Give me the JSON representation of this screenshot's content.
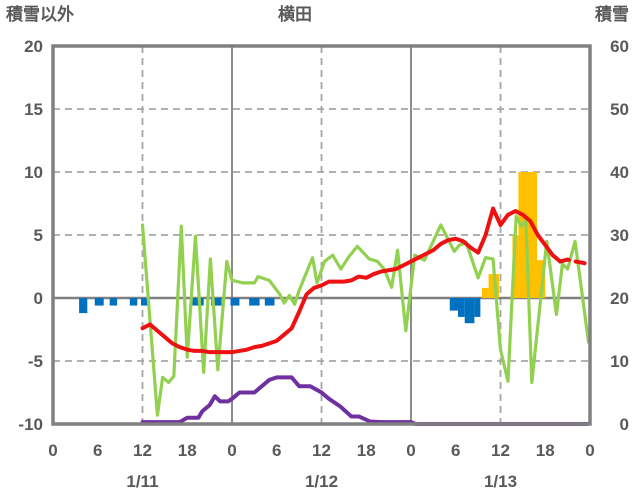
{
  "header": {
    "left_axis_title": "積雪以外",
    "chart_title": "横田",
    "right_axis_title": "積雪"
  },
  "chart_data": {
    "type": "line+bar combo (weather observation chart)",
    "title": "横田",
    "left_axis": {
      "label": "積雪以外",
      "range": [
        -10,
        20
      ],
      "ticks": [
        20,
        15,
        10,
        5,
        0,
        -5,
        -10
      ],
      "gridlines_dashed_at": [
        15,
        10,
        5,
        -5
      ],
      "zero_line_solid": true
    },
    "right_axis": {
      "label": "積雪",
      "range": [
        0,
        60
      ],
      "ticks": [
        60,
        50,
        40,
        30,
        20,
        10,
        0
      ],
      "mapping": "right = (left + 10) * 2"
    },
    "x_axis": {
      "unit": "hour",
      "range_hours": [
        0,
        72
      ],
      "tick_hours": [
        0,
        6,
        12,
        18,
        24,
        30,
        36,
        42,
        48,
        54,
        60,
        66,
        72
      ],
      "tick_labels": [
        "0",
        "6",
        "12",
        "18",
        "0",
        "6",
        "12",
        "18",
        "0",
        "6",
        "12",
        "18",
        "0"
      ],
      "day_labels": [
        {
          "hour": 12,
          "label": "1/11"
        },
        {
          "hour": 36,
          "label": "1/12"
        },
        {
          "hour": 60,
          "label": "1/13"
        }
      ],
      "dashed_vertical_at_hours": [
        12,
        36,
        60
      ],
      "solid_vertical_at_hours": [
        24,
        48
      ],
      "grid": true
    },
    "series": [
      {
        "name": "red-line",
        "axis": "left",
        "style": "solid, dashed forecast tail",
        "color": "#ee1111",
        "points": [
          [
            12,
            -2.4
          ],
          [
            13,
            -2.1
          ],
          [
            14,
            -2.6
          ],
          [
            15,
            -3.1
          ],
          [
            16,
            -3.6
          ],
          [
            17,
            -3.9
          ],
          [
            18,
            -4.1
          ],
          [
            19,
            -4.2
          ],
          [
            20,
            -4.2
          ],
          [
            21,
            -4.3
          ],
          [
            22,
            -4.3
          ],
          [
            23,
            -4.3
          ],
          [
            24,
            -4.3
          ],
          [
            25,
            -4.2
          ],
          [
            26,
            -4.1
          ],
          [
            27,
            -3.9
          ],
          [
            28,
            -3.8
          ],
          [
            29,
            -3.6
          ],
          [
            30,
            -3.4
          ],
          [
            31,
            -2.9
          ],
          [
            32,
            -2.4
          ],
          [
            33,
            -1.1
          ],
          [
            34,
            0.3
          ],
          [
            35,
            0.8
          ],
          [
            36,
            1.0
          ],
          [
            37,
            1.3
          ],
          [
            38,
            1.3
          ],
          [
            39,
            1.3
          ],
          [
            40,
            1.4
          ],
          [
            41,
            1.7
          ],
          [
            42,
            1.6
          ],
          [
            43,
            1.9
          ],
          [
            44,
            2.1
          ],
          [
            45,
            2.2
          ],
          [
            46,
            2.3
          ],
          [
            47,
            2.6
          ],
          [
            48,
            2.9
          ],
          [
            49,
            3.2
          ],
          [
            50,
            3.5
          ],
          [
            51,
            3.8
          ],
          [
            52,
            4.3
          ],
          [
            53,
            4.6
          ],
          [
            54,
            4.7
          ],
          [
            55,
            4.5
          ],
          [
            56,
            4.0
          ],
          [
            57,
            3.6
          ],
          [
            58,
            5.0
          ],
          [
            59,
            7.1
          ],
          [
            60,
            5.8
          ],
          [
            61,
            6.6
          ],
          [
            62,
            6.9
          ],
          [
            63,
            6.6
          ],
          [
            64,
            6.1
          ],
          [
            65,
            5.0
          ],
          [
            66,
            4.2
          ],
          [
            67,
            3.4
          ],
          [
            68,
            2.9
          ]
        ],
        "dashed_points": [
          [
            68,
            2.9
          ],
          [
            69,
            3.05
          ],
          [
            70,
            2.9
          ],
          [
            71,
            2.8
          ],
          [
            72,
            2.65
          ]
        ]
      },
      {
        "name": "green-line",
        "axis": "left",
        "style": "solid",
        "color": "#92d050",
        "points": [
          [
            12,
            5.8
          ],
          [
            14,
            -9.3
          ],
          [
            14.7,
            -6.3
          ],
          [
            15.5,
            -6.7
          ],
          [
            16.2,
            -6.2
          ],
          [
            17.2,
            5.7
          ],
          [
            18,
            -4.7
          ],
          [
            19.1,
            4.9
          ],
          [
            20.2,
            -5.9
          ],
          [
            21.1,
            3.1
          ],
          [
            22.1,
            -5.7
          ],
          [
            23.3,
            2.9
          ],
          [
            24,
            1.4
          ],
          [
            25.5,
            1.2
          ],
          [
            27,
            1.2
          ],
          [
            27.5,
            1.7
          ],
          [
            29,
            1.4
          ],
          [
            30.4,
            0.3
          ],
          [
            31,
            -0.4
          ],
          [
            31.7,
            0.2
          ],
          [
            32.4,
            -0.5
          ],
          [
            33,
            0.6
          ],
          [
            34.8,
            3.2
          ],
          [
            35.4,
            1.2
          ],
          [
            36.4,
            2.9
          ],
          [
            37.5,
            3.4
          ],
          [
            38.6,
            2.3
          ],
          [
            39.7,
            3.3
          ],
          [
            40.8,
            4.1
          ],
          [
            42.4,
            3.1
          ],
          [
            43.5,
            2.9
          ],
          [
            44.4,
            2.3
          ],
          [
            45.4,
            0.85
          ],
          [
            46.2,
            3.8
          ],
          [
            47.3,
            -2.6
          ],
          [
            48.5,
            3.4
          ],
          [
            49.8,
            3.0
          ],
          [
            52,
            5.8
          ],
          [
            53.8,
            3.7
          ],
          [
            54.5,
            4.2
          ],
          [
            55.4,
            4.4
          ],
          [
            57,
            1.6
          ],
          [
            58,
            3.2
          ],
          [
            59,
            3.1
          ],
          [
            60,
            -4.1
          ],
          [
            61,
            -6.6
          ],
          [
            62.1,
            6.5
          ],
          [
            62.8,
            5.7
          ],
          [
            63.4,
            6.2
          ],
          [
            64.2,
            -6.7
          ],
          [
            66.2,
            4.5
          ],
          [
            67.5,
            -1.3
          ],
          [
            68.3,
            2.7
          ],
          [
            69,
            2.3
          ],
          [
            70,
            4.5
          ],
          [
            71.8,
            -3.5
          ]
        ]
      },
      {
        "name": "purple-line",
        "axis": "right",
        "style": "solid",
        "color": "#7030a0",
        "unit": "cm (right axis)",
        "points_cm": [
          [
            12,
            0.3
          ],
          [
            17,
            0.3
          ],
          [
            18,
            1
          ],
          [
            19.5,
            1
          ],
          [
            20,
            2
          ],
          [
            21,
            3
          ],
          [
            21.7,
            4.4
          ],
          [
            22.4,
            3.6
          ],
          [
            23.5,
            3.6
          ],
          [
            24,
            4
          ],
          [
            25,
            5
          ],
          [
            27,
            5
          ],
          [
            28,
            6
          ],
          [
            29,
            7
          ],
          [
            30,
            7.4
          ],
          [
            32,
            7.4
          ],
          [
            33,
            6
          ],
          [
            34.5,
            6
          ],
          [
            36,
            5
          ],
          [
            37,
            4
          ],
          [
            38.5,
            2.8
          ],
          [
            40,
            1.2
          ],
          [
            41,
            1.2
          ],
          [
            42.5,
            0.4
          ],
          [
            44,
            0.3
          ],
          [
            48,
            0.3
          ],
          [
            48.6,
            0
          ],
          [
            71.6,
            0
          ]
        ]
      },
      {
        "name": "blue-bars",
        "axis": "left",
        "type": "bar",
        "color": "#0070c0",
        "bars_h0_h1_value": [
          [
            3.5,
            4.6,
            -1.2
          ],
          [
            5.6,
            6.8,
            -0.6
          ],
          [
            7.6,
            8.6,
            -0.6
          ],
          [
            10.3,
            11.3,
            -0.6
          ],
          [
            11.8,
            12.9,
            -0.6
          ],
          [
            18.7,
            20.2,
            -0.6
          ],
          [
            21.2,
            22.6,
            -0.6
          ],
          [
            23.8,
            25,
            -0.6
          ],
          [
            26.3,
            27.7,
            -0.6
          ],
          [
            28.4,
            29.7,
            -0.6
          ],
          [
            53.2,
            54.3,
            -1
          ],
          [
            54.3,
            55.2,
            -1.5
          ],
          [
            55.2,
            56.5,
            -2
          ],
          [
            56.5,
            57.3,
            -1.5
          ]
        ]
      },
      {
        "name": "orange-bars",
        "axis": "left",
        "type": "bar",
        "color": "#ffc000",
        "bars_h0_h1_value": [
          [
            57.5,
            58.4,
            0.8
          ],
          [
            58.4,
            59.8,
            1.9
          ],
          [
            61.6,
            62.4,
            5
          ],
          [
            62.4,
            64.9,
            10
          ],
          [
            64.9,
            66,
            3
          ]
        ]
      }
    ],
    "colors": {
      "frame": "#808080",
      "zero_line": "#808080",
      "day_line": "#8c8c8c",
      "gridline": "#a6a6a6",
      "text": "#595959",
      "background": "#ffffff"
    },
    "legend": "none visible"
  }
}
